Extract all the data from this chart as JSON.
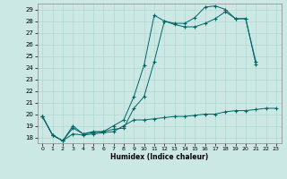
{
  "xlabel": "Humidex (Indice chaleur)",
  "background_color": "#cce8e4",
  "grid_color": "#b0d8d0",
  "line_color": "#006666",
  "xlim": [
    -0.5,
    23.5
  ],
  "ylim": [
    17.5,
    29.5
  ],
  "yticks": [
    18,
    19,
    20,
    21,
    22,
    23,
    24,
    25,
    26,
    27,
    28,
    29
  ],
  "xticks": [
    0,
    1,
    2,
    3,
    4,
    5,
    6,
    7,
    8,
    9,
    10,
    11,
    12,
    13,
    14,
    15,
    16,
    17,
    18,
    19,
    20,
    21,
    22,
    23
  ],
  "line1_y": [
    19.8,
    18.2,
    17.7,
    19.0,
    18.3,
    18.5,
    18.5,
    19.0,
    19.5,
    21.5,
    24.2,
    28.5,
    28.0,
    27.8,
    27.8,
    28.3,
    29.2,
    29.3,
    29.0,
    28.2,
    28.2,
    24.3,
    null,
    null
  ],
  "line2_y": [
    19.8,
    18.2,
    17.7,
    18.8,
    18.3,
    18.4,
    18.5,
    18.7,
    18.8,
    20.5,
    21.5,
    24.5,
    28.0,
    27.7,
    27.5,
    27.5,
    27.8,
    28.2,
    28.8,
    28.2,
    28.2,
    24.5,
    null,
    null
  ],
  "line3_y": [
    19.8,
    18.2,
    17.7,
    18.3,
    18.2,
    18.3,
    18.4,
    18.5,
    19.0,
    19.5,
    19.5,
    19.6,
    19.7,
    19.8,
    19.8,
    19.9,
    20.0,
    20.0,
    20.2,
    20.3,
    20.3,
    20.4,
    20.5,
    20.5
  ]
}
